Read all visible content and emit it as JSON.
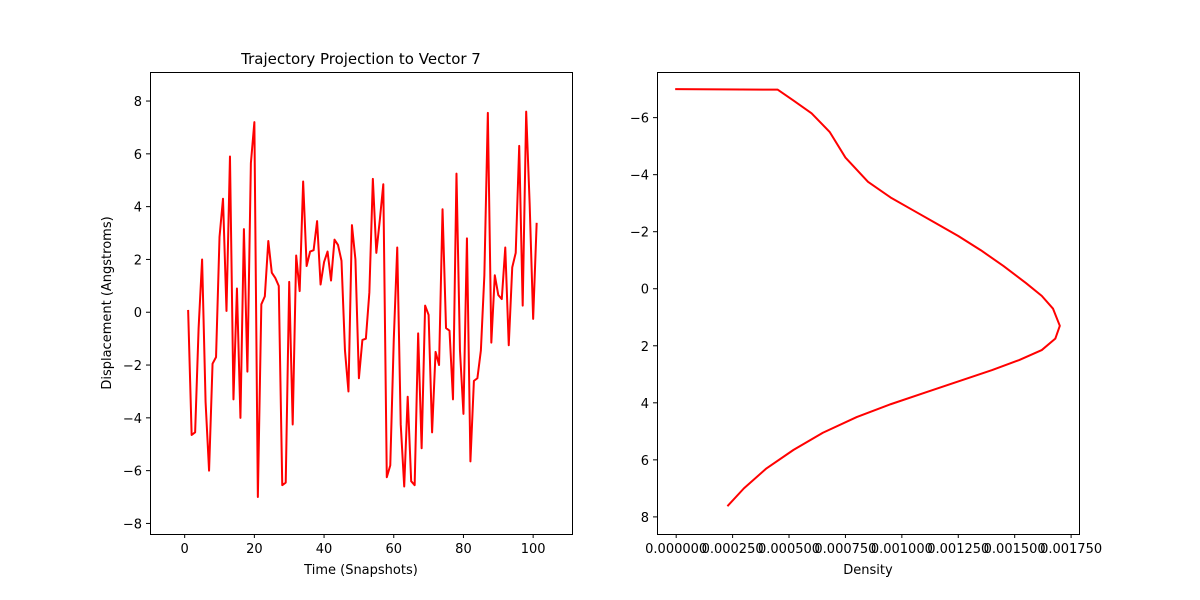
{
  "chart_data": [
    {
      "type": "line",
      "title": "Trajectory Projection to Vector 7",
      "xlabel": "Time (Snapshots)",
      "ylabel": "Displacement (Angstroms)",
      "xlim": [
        -9.95,
        111.15
      ],
      "ylim": [
        -8.4,
        9.1
      ],
      "xticks": [
        0,
        20,
        40,
        60,
        80,
        100
      ],
      "xtick_labels": [
        "0",
        "20",
        "40",
        "60",
        "80",
        "100"
      ],
      "yticks": [
        -8,
        -6,
        -4,
        -2,
        0,
        2,
        4,
        6,
        8
      ],
      "ytick_labels": [
        "−8",
        "−6",
        "−4",
        "−2",
        "0",
        "2",
        "4",
        "6",
        "8"
      ],
      "color": "#ff0000",
      "series": [
        {
          "x": [
            1,
            2,
            3,
            4,
            5,
            6,
            7,
            8,
            9,
            10,
            11,
            12,
            13,
            14,
            15,
            16,
            17,
            18,
            19,
            20,
            21,
            22,
            23,
            24,
            25,
            26,
            27,
            28,
            29,
            30,
            31,
            32,
            33,
            34,
            35,
            36,
            37,
            38,
            39,
            40,
            41,
            42,
            43,
            44,
            45,
            46,
            47,
            48,
            49,
            50,
            51,
            52,
            53,
            54,
            55,
            56,
            57,
            58,
            59,
            60,
            61,
            62,
            63,
            64,
            65,
            66,
            67,
            68,
            69,
            70,
            71,
            72,
            73,
            74,
            75,
            76,
            77,
            78,
            79,
            80,
            81,
            82,
            83,
            84,
            85,
            86,
            87,
            88,
            89,
            90,
            91,
            92,
            93,
            94,
            95,
            96,
            97,
            98,
            99,
            100,
            101
          ],
          "y": [
            0.05,
            -4.65,
            -4.55,
            -0.6,
            2.0,
            -3.4,
            -6.0,
            -1.95,
            -1.7,
            2.85,
            4.3,
            0.05,
            5.9,
            -3.3,
            0.9,
            -4.0,
            3.15,
            -2.25,
            5.65,
            7.2,
            -7.0,
            0.3,
            0.6,
            2.7,
            1.5,
            1.3,
            1.0,
            -6.55,
            -6.45,
            1.15,
            -4.25,
            2.15,
            0.8,
            4.95,
            1.75,
            2.3,
            2.35,
            3.45,
            1.05,
            1.9,
            2.3,
            1.2,
            2.75,
            2.55,
            1.95,
            -1.45,
            -3.0,
            3.3,
            2.0,
            -2.5,
            -1.05,
            -1.0,
            0.75,
            5.05,
            2.25,
            3.5,
            4.85,
            -6.25,
            -5.8,
            -1.05,
            2.45,
            -4.25,
            -6.6,
            -3.2,
            -6.4,
            -6.55,
            -0.8,
            -5.15,
            0.25,
            -0.1,
            -4.55,
            -1.5,
            -2.0,
            3.9,
            -0.6,
            -0.7,
            -3.3,
            5.25,
            -1.45,
            -3.85,
            2.8,
            -5.65,
            -2.6,
            -2.5,
            -1.45,
            1.4,
            7.55,
            -1.15,
            1.4,
            0.65,
            0.5,
            2.45,
            -1.25,
            1.7,
            2.25,
            6.3,
            0.25,
            7.6,
            4.1,
            -0.25,
            3.35
          ]
        }
      ]
    },
    {
      "type": "line",
      "title": "",
      "xlabel": "Density",
      "ylabel": "",
      "xlim": [
        -8.5e-05,
        0.001785
      ],
      "ylim": [
        -7.6,
        8.6
      ],
      "y_inverted": true,
      "xticks": [
        0.0,
        0.00025,
        0.0005,
        0.00075,
        0.001,
        0.00125,
        0.0015,
        0.00175
      ],
      "xtick_labels": [
        "0.000000",
        "0.000250",
        "0.000500",
        "0.000750",
        "0.001000",
        "0.001250",
        "0.001500",
        "0.001750"
      ],
      "yticks": [
        -6,
        -4,
        -2,
        0,
        2,
        4,
        6,
        8
      ],
      "ytick_labels": [
        "−6",
        "−4",
        "−2",
        "0",
        "2",
        "4",
        "6",
        "8"
      ],
      "color": "#ff0000",
      "series": [
        {
          "density": [
            0.0,
            0.00045,
            0.00052,
            0.0006,
            0.00068,
            0.00075,
            0.00085,
            0.00095,
            0.00105,
            0.00115,
            0.00125,
            0.00135,
            0.00145,
            0.00155,
            0.00162,
            0.00167,
            0.0017,
            0.00168,
            0.00162,
            0.00152,
            0.0014,
            0.00125,
            0.0011,
            0.00095,
            0.0008,
            0.00065,
            0.00052,
            0.0004,
            0.0003,
            0.00023
          ],
          "value": [
            -7.0,
            -6.98,
            -6.6,
            -6.15,
            -5.5,
            -4.6,
            -3.75,
            -3.2,
            -2.75,
            -2.3,
            -1.85,
            -1.35,
            -0.8,
            -0.2,
            0.25,
            0.7,
            1.3,
            1.75,
            2.15,
            2.5,
            2.85,
            3.25,
            3.65,
            4.05,
            4.5,
            5.05,
            5.65,
            6.3,
            7.0,
            7.6
          ]
        }
      ]
    }
  ]
}
